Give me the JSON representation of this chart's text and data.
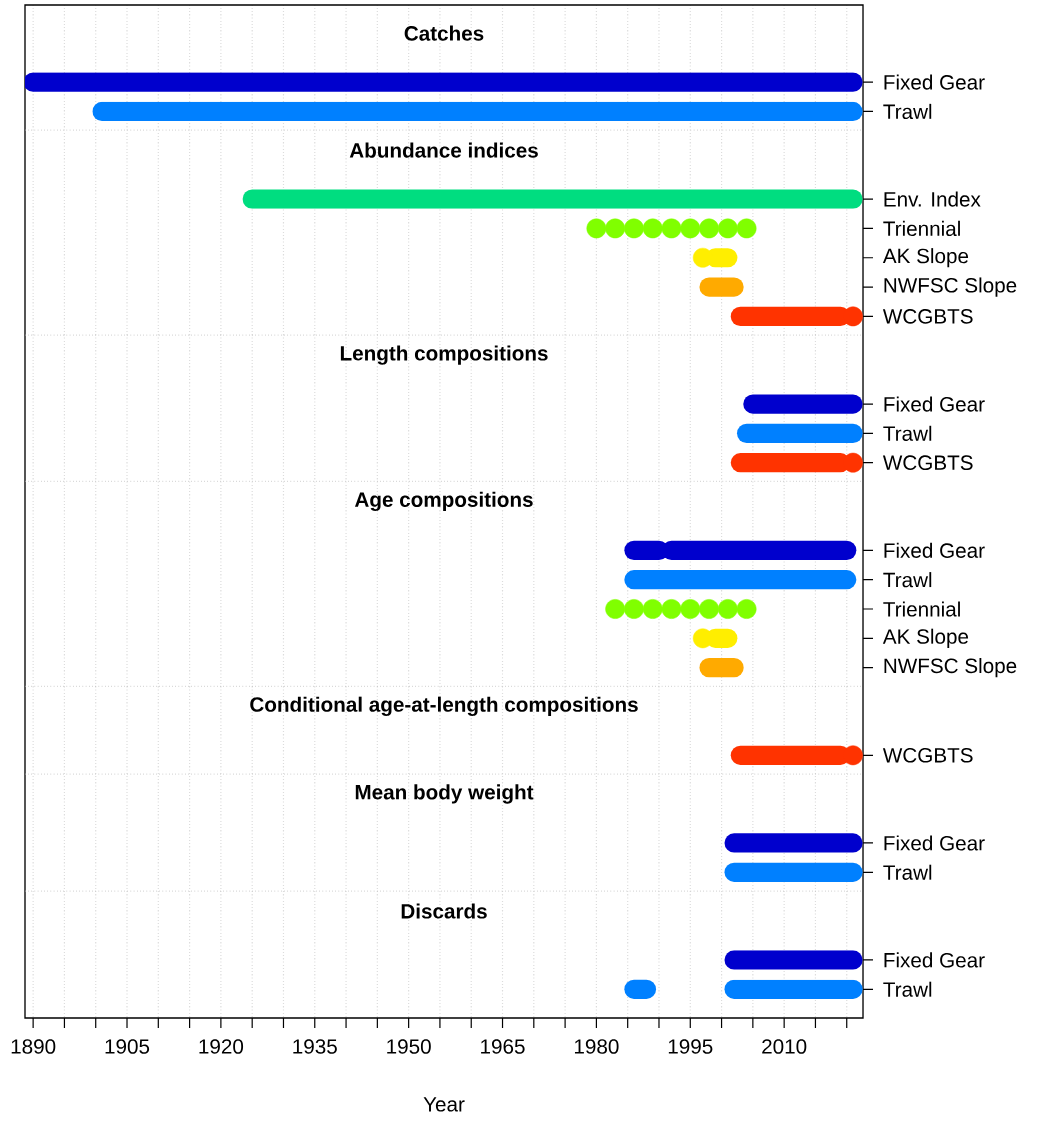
{
  "chart_data": {
    "type": "bar",
    "orientation": "horizontal",
    "xlabel": "Year",
    "grid": true,
    "xlim": [
      1888.7,
      2022.6
    ],
    "xticks": [
      1890,
      {
        "value": 1895,
        "label": null
      },
      {
        "value": 1900,
        "label": null
      },
      1905,
      {
        "value": 1910,
        "label": null
      },
      {
        "value": 1915,
        "label": null
      },
      1920,
      {
        "value": 1925,
        "label": null
      },
      {
        "value": 1930,
        "label": null
      },
      1935,
      {
        "value": 1940,
        "label": null
      },
      {
        "value": 1945,
        "label": null
      },
      1950,
      {
        "value": 1955,
        "label": null
      },
      {
        "value": 1960,
        "label": null
      },
      1965,
      {
        "value": 1970,
        "label": null
      },
      {
        "value": 1975,
        "label": null
      },
      1980,
      {
        "value": 1985,
        "label": null
      },
      {
        "value": 1990,
        "label": null
      },
      1995,
      {
        "value": 2000,
        "label": null
      },
      {
        "value": 2005,
        "label": null
      },
      2010,
      {
        "value": 2015,
        "label": null
      },
      {
        "value": 2020,
        "label": null
      }
    ],
    "categories": [
      null,
      "Fixed Gear",
      "Trawl",
      null,
      "Env. Index",
      "Triennial",
      "AK Slope",
      "NWFSC Slope",
      "WCGBTS",
      null,
      "Fixed Gear",
      "Trawl",
      "WCGBTS",
      null,
      "Fixed Gear",
      "Trawl",
      "Triennial",
      "AK Slope",
      "NWFSC Slope",
      null,
      "WCGBTS",
      null,
      "Fixed Gear",
      "Trawl",
      null,
      "Fixed Gear",
      "Trawl"
    ],
    "annotations": [
      "Catches",
      "Abundance indices",
      "Length compositions",
      "Age compositions",
      "Conditional age-at-length compositions",
      "Mean body weight",
      "Discards"
    ],
    "series": [
      {
        "base": [
          null,
          1890,
          1901,
          null,
          1925,
          null,
          1999,
          1998,
          2003,
          null,
          2005,
          2004,
          2003,
          null,
          1986,
          1986,
          null,
          1999,
          1998,
          null,
          2003,
          null,
          2002,
          2002,
          null,
          2002,
          1986
        ],
        "values": [
          null,
          131,
          120,
          null,
          96,
          null,
          2,
          4,
          16,
          null,
          16,
          17,
          16,
          null,
          4,
          34,
          null,
          2,
          4,
          null,
          16,
          null,
          19,
          19,
          null,
          19,
          2
        ],
        "colors": [
          null,
          "#0000CD",
          "#0080FF",
          null,
          "#00DD80",
          null,
          "#FFEE00",
          "#FFAA00",
          "#FF3300",
          null,
          "#0000CD",
          "#0080FF",
          "#FF3300",
          null,
          "#0000CD",
          "#0080FF",
          null,
          "#FFEE00",
          "#FFAA00",
          null,
          "#FF3300",
          null,
          "#0000CD",
          "#0080FF",
          null,
          "#0000CD",
          "#0080FF"
        ]
      },
      {
        "base": [
          null,
          null,
          null,
          null,
          null,
          null,
          null,
          null,
          null,
          null,
          null,
          null,
          null,
          null,
          1992,
          null,
          null,
          null,
          null,
          null,
          null,
          null,
          null,
          null,
          null,
          null,
          2002
        ],
        "values": [
          null,
          null,
          null,
          null,
          null,
          null,
          null,
          null,
          null,
          null,
          null,
          null,
          null,
          null,
          28,
          null,
          null,
          null,
          null,
          null,
          null,
          null,
          null,
          null,
          null,
          null,
          19
        ],
        "colors": [
          null,
          null,
          null,
          null,
          null,
          null,
          null,
          null,
          null,
          null,
          null,
          null,
          null,
          null,
          "#0000CD",
          null,
          null,
          null,
          null,
          null,
          null,
          null,
          null,
          null,
          null,
          null,
          "#0080FF"
        ]
      },
      {
        "type": "scatter",
        "marker": "circle",
        "values": [
          null,
          null,
          null,
          null,
          null,
          1980,
          1997,
          null,
          2021,
          null,
          null,
          null,
          2021,
          null,
          null,
          null,
          1983,
          1997,
          null,
          null,
          2021,
          null,
          null,
          null,
          null,
          null,
          null
        ],
        "colors": [
          null,
          null,
          null,
          null,
          null,
          "#80FF00",
          "#FFEE00",
          null,
          "#FF3300",
          null,
          null,
          null,
          "#FF3300",
          null,
          null,
          null,
          "#80FF00",
          "#FFEE00",
          null,
          null,
          "#FF3300",
          null,
          null,
          null,
          null,
          null,
          null
        ]
      },
      {
        "type": "scatter",
        "marker": "circle",
        "values": [
          null,
          null,
          null,
          null,
          null,
          1983,
          null,
          null,
          null,
          null,
          null,
          null,
          null,
          null,
          null,
          null,
          1986,
          null,
          null,
          null,
          null,
          null,
          null,
          null,
          null,
          null,
          null
        ],
        "colors": [
          null,
          null,
          null,
          null,
          null,
          "#80FF00",
          null,
          null,
          null,
          null,
          null,
          null,
          null,
          null,
          null,
          null,
          "#80FF00",
          null,
          null,
          null,
          null,
          null,
          null,
          null,
          null,
          null,
          null
        ]
      },
      {
        "type": "scatter",
        "marker": "circle",
        "values": [
          null,
          null,
          null,
          null,
          null,
          1986,
          null,
          null,
          null,
          null,
          null,
          null,
          null,
          null,
          null,
          null,
          1989,
          null,
          null,
          null,
          null,
          null,
          null,
          null,
          null,
          null,
          null
        ],
        "colors": [
          null,
          null,
          null,
          null,
          null,
          "#80FF00",
          null,
          null,
          null,
          null,
          null,
          null,
          null,
          null,
          null,
          null,
          "#80FF00",
          null,
          null,
          null,
          null,
          null,
          null,
          null,
          null,
          null,
          null
        ]
      },
      {
        "type": "scatter",
        "marker": "circle",
        "values": [
          null,
          null,
          null,
          null,
          null,
          1989,
          null,
          null,
          null,
          null,
          null,
          null,
          null,
          null,
          null,
          null,
          1992,
          null,
          null,
          null,
          null,
          null,
          null,
          null,
          null,
          null,
          null
        ],
        "colors": [
          null,
          null,
          null,
          null,
          null,
          "#80FF00",
          null,
          null,
          null,
          null,
          null,
          null,
          null,
          null,
          null,
          null,
          "#80FF00",
          null,
          null,
          null,
          null,
          null,
          null,
          null,
          null,
          null,
          null
        ]
      },
      {
        "type": "scatter",
        "marker": "circle",
        "values": [
          null,
          null,
          null,
          null,
          null,
          1992,
          null,
          null,
          null,
          null,
          null,
          null,
          null,
          null,
          null,
          null,
          1995,
          null,
          null,
          null,
          null,
          null,
          null,
          null,
          null,
          null,
          null
        ],
        "colors": [
          null,
          null,
          null,
          null,
          null,
          "#80FF00",
          null,
          null,
          null,
          null,
          null,
          null,
          null,
          null,
          null,
          null,
          "#80FF00",
          null,
          null,
          null,
          null,
          null,
          null,
          null,
          null,
          null,
          null
        ]
      },
      {
        "type": "scatter",
        "marker": "circle",
        "values": [
          null,
          null,
          null,
          null,
          null,
          1995,
          null,
          null,
          null,
          null,
          null,
          null,
          null,
          null,
          null,
          null,
          1998,
          null,
          null,
          null,
          null,
          null,
          null,
          null,
          null,
          null,
          null
        ],
        "colors": [
          null,
          null,
          null,
          null,
          null,
          "#80FF00",
          null,
          null,
          null,
          null,
          null,
          null,
          null,
          null,
          null,
          null,
          "#80FF00",
          null,
          null,
          null,
          null,
          null,
          null,
          null,
          null,
          null,
          null
        ]
      },
      {
        "type": "scatter",
        "marker": "circle",
        "values": [
          null,
          null,
          null,
          null,
          null,
          1998,
          null,
          null,
          null,
          null,
          null,
          null,
          null,
          null,
          null,
          null,
          2001,
          null,
          null,
          null,
          null,
          null,
          null,
          null,
          null,
          null,
          null
        ],
        "colors": [
          null,
          null,
          null,
          null,
          null,
          "#80FF00",
          null,
          null,
          null,
          null,
          null,
          null,
          null,
          null,
          null,
          null,
          "#80FF00",
          null,
          null,
          null,
          null,
          null,
          null,
          null,
          null,
          null,
          null
        ]
      },
      {
        "type": "scatter",
        "marker": "circle",
        "values": [
          null,
          null,
          null,
          null,
          null,
          2001,
          null,
          null,
          null,
          null,
          null,
          null,
          null,
          null,
          null,
          null,
          2004,
          null,
          null,
          null,
          null,
          null,
          null,
          null,
          null,
          null,
          null
        ],
        "colors": [
          null,
          null,
          null,
          null,
          null,
          "#80FF00",
          null,
          null,
          null,
          null,
          null,
          null,
          null,
          null,
          null,
          null,
          "#80FF00",
          null,
          null,
          null,
          null,
          null,
          null,
          null,
          null,
          null,
          null
        ]
      },
      {
        "type": "scatter",
        "marker": "circle",
        "values": [
          null,
          null,
          null,
          null,
          null,
          2004,
          null,
          null,
          null,
          null,
          null,
          null,
          null,
          null,
          null,
          null,
          null,
          null,
          null,
          null,
          null,
          null,
          null,
          null,
          null,
          null,
          null
        ],
        "colors": [
          null,
          null,
          null,
          null,
          null,
          "#80FF00",
          null,
          null,
          null,
          null,
          null,
          null,
          null,
          null,
          null,
          null,
          null,
          null,
          null,
          null,
          null,
          null,
          null,
          null,
          null,
          null,
          null
        ]
      }
    ]
  }
}
